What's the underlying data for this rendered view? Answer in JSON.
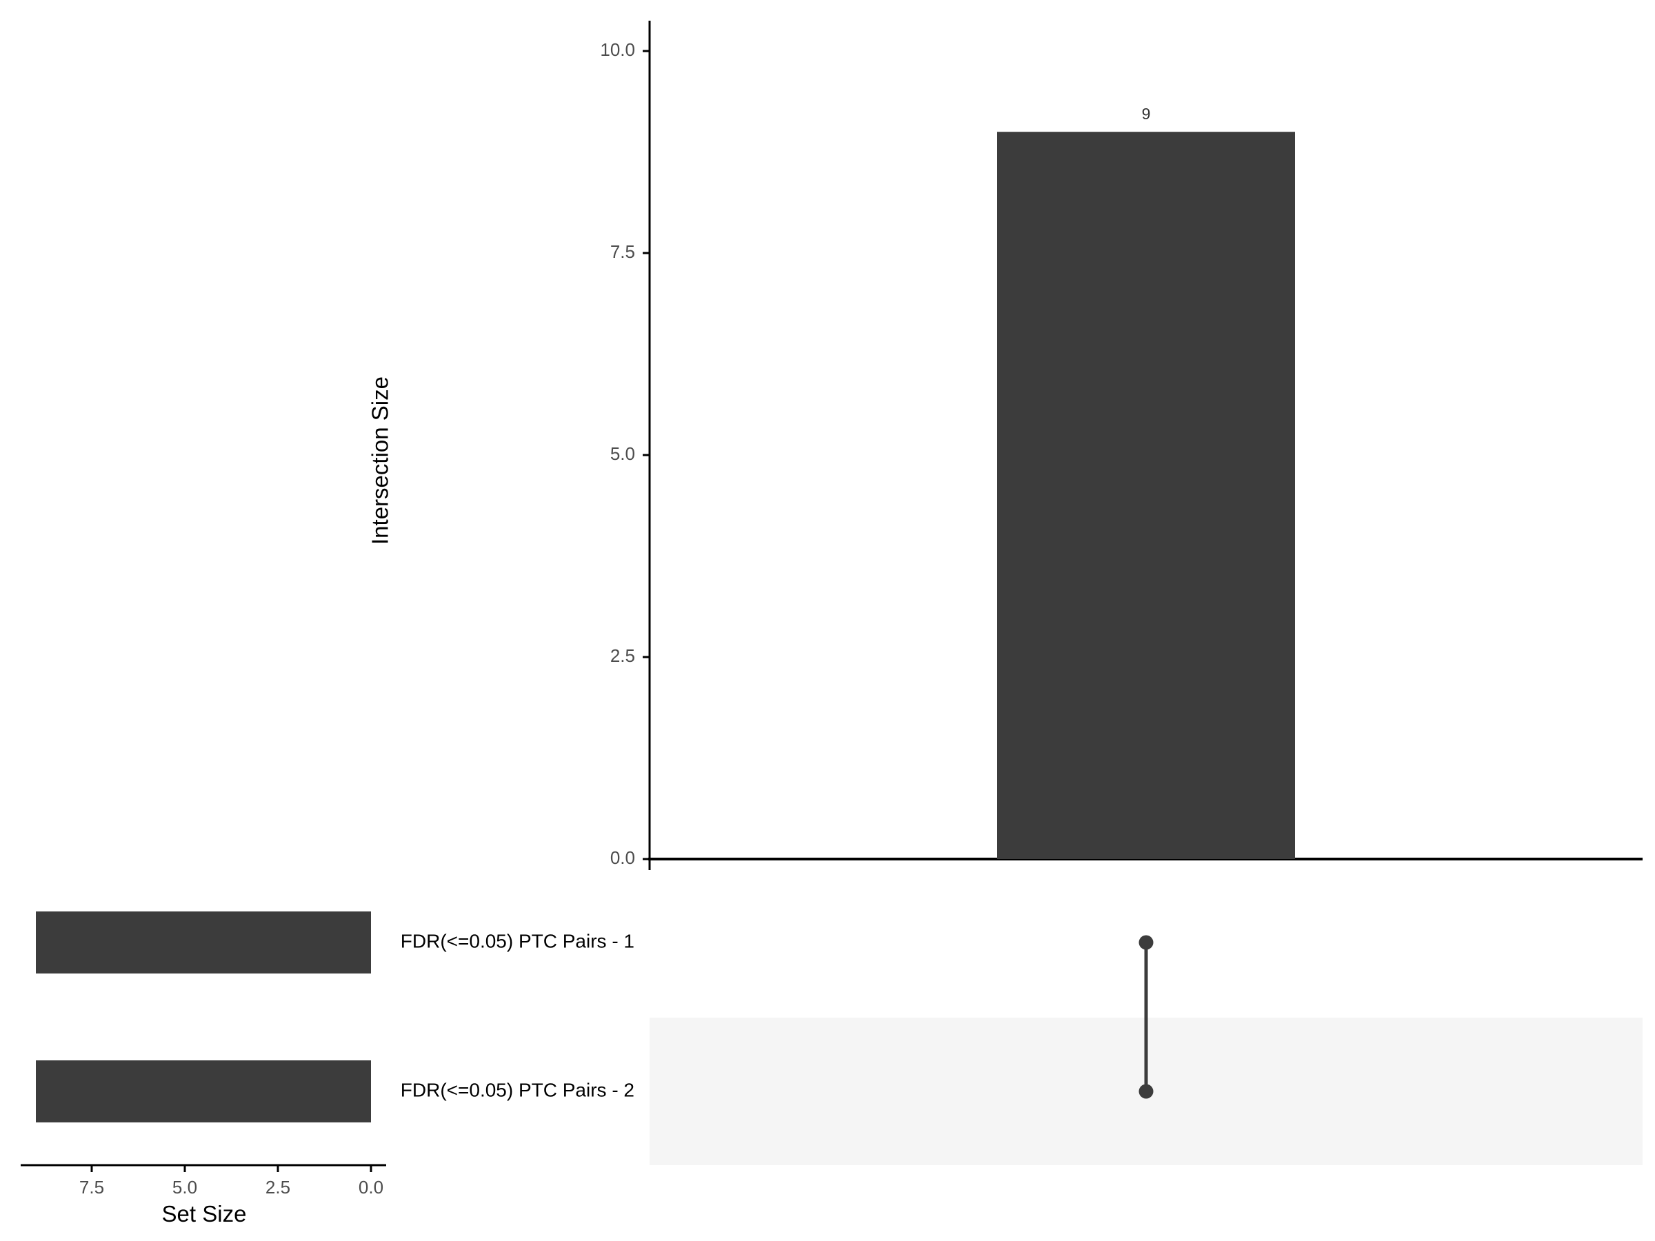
{
  "colors": {
    "bar": "#3c3c3c",
    "axis": "#000000",
    "dot": "#3c3c3c",
    "band": "#f5f5f5",
    "tick_text": "#4d4d4d"
  },
  "chart_data": {
    "type": "upset",
    "intersection_axis": {
      "label": "Intersection Size",
      "ylim": [
        0,
        10
      ],
      "ticks": [
        0.0,
        2.5,
        5.0,
        7.5,
        10.0
      ],
      "tick_labels": [
        "0.0",
        "2.5",
        "5.0",
        "7.5",
        "10.0"
      ]
    },
    "intersections": [
      {
        "sets": [
          "FDR(<=0.05) PTC Pairs - 1",
          "FDR(<=0.05) PTC Pairs - 2"
        ],
        "size": 9,
        "label": "9"
      }
    ],
    "set_size_axis": {
      "label": "Set Size",
      "xlim": [
        0,
        9
      ],
      "ticks": [
        7.5,
        5.0,
        2.5,
        0.0
      ],
      "tick_labels": [
        "7.5",
        "5.0",
        "2.5",
        "0.0"
      ],
      "reversed": true
    },
    "sets": [
      {
        "name": "FDR(<=0.05) PTC Pairs - 1",
        "size": 9
      },
      {
        "name": "FDR(<=0.05) PTC Pairs - 2",
        "size": 9
      }
    ],
    "grid": false
  }
}
